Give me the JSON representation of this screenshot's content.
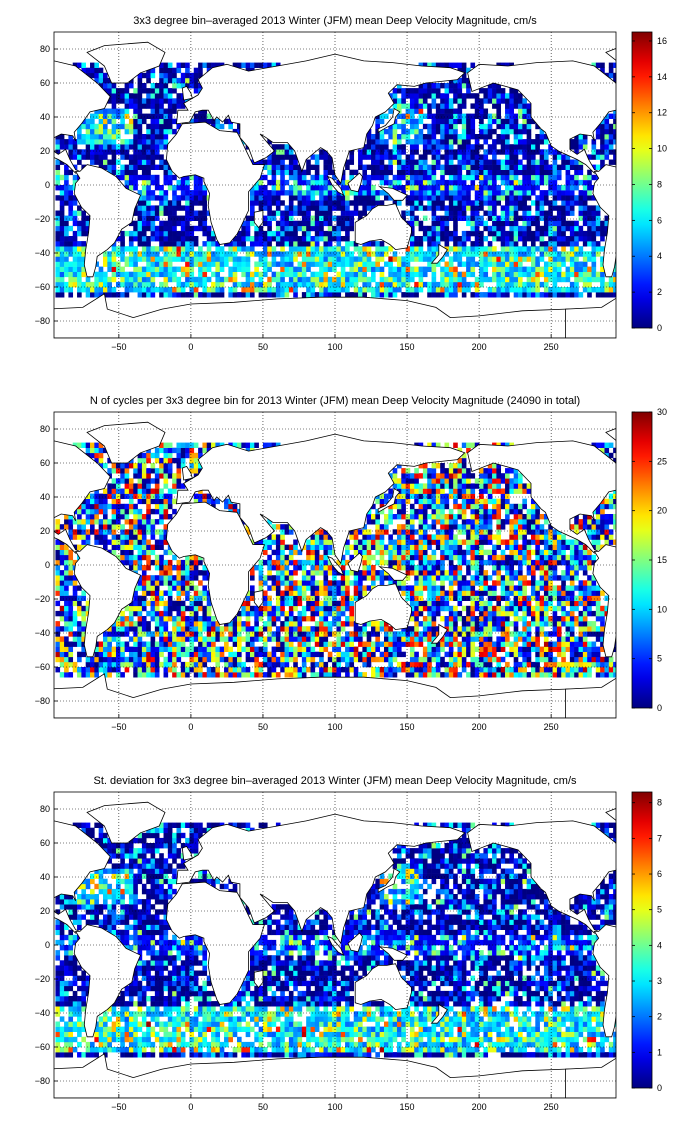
{
  "figure": {
    "background": "#ffffff"
  },
  "colormap": "jet",
  "chart_data": [
    {
      "type": "heatmap",
      "title": "3x3 degree bin–averaged 2013 Winter (JFM) mean Deep Velocity Magnitude, cm/s",
      "xlim": [
        -95,
        295
      ],
      "ylim": [
        -90,
        90
      ],
      "x_ticks": [
        -50,
        0,
        50,
        100,
        150,
        200,
        250
      ],
      "y_ticks": [
        80,
        60,
        40,
        20,
        0,
        -20,
        -40,
        -60,
        -80
      ],
      "x_tick_labels": [
        "−50",
        "0",
        "50",
        "100",
        "150",
        "200",
        "250"
      ],
      "y_tick_labels": [
        "80",
        "60",
        "40",
        "20",
        "0",
        "−20",
        "−40",
        "−60",
        "−80"
      ],
      "grid": true,
      "colorbar": {
        "min": 0,
        "max": 16.5,
        "ticks": [
          0,
          2,
          4,
          6,
          8,
          10,
          12,
          14,
          16
        ]
      }
    },
    {
      "type": "heatmap",
      "title": "N of cycles per 3x3 degree bin for 2013 Winter (JFM) mean Deep Velocity Magnitude (24090 in total)",
      "xlim": [
        -95,
        295
      ],
      "ylim": [
        -90,
        90
      ],
      "x_ticks": [
        -50,
        0,
        50,
        100,
        150,
        200,
        250
      ],
      "y_ticks": [
        80,
        60,
        40,
        20,
        0,
        -20,
        -40,
        -60,
        -80
      ],
      "x_tick_labels": [
        "−50",
        "0",
        "50",
        "100",
        "150",
        "200",
        "250"
      ],
      "y_tick_labels": [
        "80",
        "60",
        "40",
        "20",
        "0",
        "−20",
        "−40",
        "−60",
        "−80"
      ],
      "grid": true,
      "colorbar": {
        "min": 0,
        "max": 30,
        "ticks": [
          0,
          5,
          10,
          15,
          20,
          25,
          30
        ]
      }
    },
    {
      "type": "heatmap",
      "title": "St. deviation for 3x3 degree bin–averaged 2013 Winter (JFM) mean Deep Velocity Magnitude, cm/s",
      "xlim": [
        -95,
        295
      ],
      "ylim": [
        -90,
        90
      ],
      "x_ticks": [
        -50,
        0,
        50,
        100,
        150,
        200,
        250
      ],
      "y_ticks": [
        80,
        60,
        40,
        20,
        0,
        -20,
        -40,
        -60,
        -80
      ],
      "x_tick_labels": [
        "−50",
        "0",
        "50",
        "100",
        "150",
        "200",
        "250"
      ],
      "y_tick_labels": [
        "80",
        "60",
        "40",
        "20",
        "0",
        "−20",
        "−40",
        "−60",
        "−80"
      ],
      "grid": true,
      "colorbar": {
        "min": 0,
        "max": 8.3,
        "ticks": [
          0,
          1,
          2,
          3,
          4,
          5,
          6,
          7,
          8
        ]
      }
    }
  ]
}
